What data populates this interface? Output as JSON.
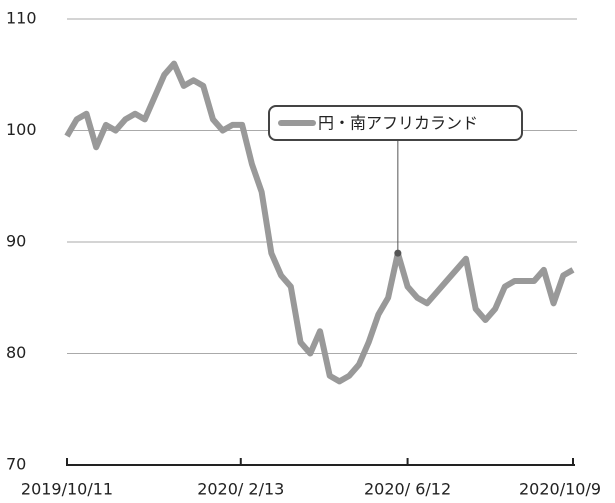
{
  "chart_data": {
    "type": "line",
    "x": [
      "2019/10/11",
      "2019/10/18",
      "2019/10/25",
      "2019/11/1",
      "2019/11/8",
      "2019/11/15",
      "2019/11/22",
      "2019/11/29",
      "2019/12/6",
      "2019/12/13",
      "2019/12/20",
      "2019/12/27",
      "2020/1/3",
      "2020/1/10",
      "2020/1/17",
      "2020/1/24",
      "2020/1/31",
      "2020/2/7",
      "2020/2/14",
      "2020/2/21",
      "2020/2/28",
      "2020/3/6",
      "2020/3/13",
      "2020/3/20",
      "2020/3/27",
      "2020/4/3",
      "2020/4/10",
      "2020/4/17",
      "2020/4/24",
      "2020/5/1",
      "2020/5/8",
      "2020/5/15",
      "2020/5/22",
      "2020/5/29",
      "2020/6/5",
      "2020/6/12",
      "2020/6/19",
      "2020/6/26",
      "2020/7/3",
      "2020/7/10",
      "2020/7/17",
      "2020/7/24",
      "2020/7/31",
      "2020/8/7",
      "2020/8/14",
      "2020/8/21",
      "2020/8/28",
      "2020/9/4",
      "2020/9/11",
      "2020/9/18",
      "2020/9/25",
      "2020/10/2",
      "2020/10/9"
    ],
    "series": [
      {
        "name": "円・南アフリカランド",
        "color": "#999999",
        "values": [
          99.5,
          101,
          101.5,
          98.5,
          100.5,
          100,
          101,
          101.5,
          101,
          103,
          105,
          106,
          104,
          104.5,
          104,
          101,
          100,
          100.5,
          100.5,
          97,
          94.5,
          89,
          87,
          86,
          81,
          80,
          82,
          78,
          77.5,
          78,
          79,
          81,
          83.5,
          85,
          89,
          86,
          85,
          84.5,
          85.5,
          86.5,
          87.5,
          88.5,
          84,
          83,
          84,
          86,
          86.5,
          86.5,
          86.5,
          87.5,
          84.5,
          87,
          87.5
        ]
      }
    ],
    "xlim": [
      "2019/10/11",
      "2020/10/9"
    ],
    "xticks": [
      "2019/10/11",
      {
        "value": "2020/2/13",
        "label": "2020/ 2/13"
      },
      {
        "value": "2020/6/12",
        "label": "2020/ 6/12"
      },
      "2020/10/9"
    ],
    "ylim": [
      70,
      110
    ],
    "yticks": [
      70,
      80,
      90,
      100,
      110
    ],
    "grid": true
  }
}
